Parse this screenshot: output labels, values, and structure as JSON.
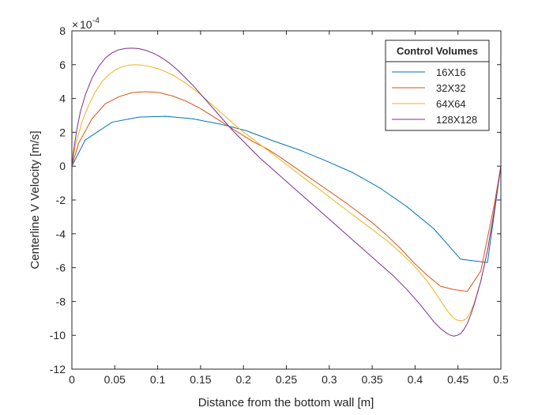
{
  "chart_data": {
    "type": "line",
    "title": "",
    "xlabel": "Distance from the bottom wall [m]",
    "ylabel": "Centerline V Velocity [m/s]",
    "xlim": [
      0,
      0.5
    ],
    "ylim": [
      -12,
      8
    ],
    "y_scale_base": "10",
    "y_scale_exponent": "-4",
    "x_ticks": [
      0,
      0.05,
      0.1,
      0.15,
      0.2,
      0.25,
      0.3,
      0.35,
      0.4,
      0.45,
      0.5
    ],
    "x_tick_labels": [
      "0",
      "0.05",
      "0.1",
      "0.15",
      "0.2",
      "0.25",
      "0.3",
      "0.35",
      "0.4",
      "0.45",
      "0.5"
    ],
    "y_ticks": [
      -12,
      -10,
      -8,
      -6,
      -4,
      -2,
      0,
      2,
      4,
      6,
      8
    ],
    "y_tick_labels": [
      "-12",
      "-10",
      "-8",
      "-6",
      "-4",
      "-2",
      "0",
      "2",
      "4",
      "6",
      "8"
    ],
    "grid": false,
    "legend": {
      "title": "Control Volumes",
      "position": "top-right"
    },
    "series": [
      {
        "name": "16X16",
        "color": "#0072BD",
        "x": [
          0,
          0.0156,
          0.0469,
          0.0781,
          0.1094,
          0.1406,
          0.1719,
          0.2031,
          0.2344,
          0.2656,
          0.2969,
          0.3281,
          0.3594,
          0.3906,
          0.4219,
          0.4531,
          0.4844,
          0.5
        ],
        "y": [
          0,
          1.55,
          2.6,
          2.9,
          2.95,
          2.8,
          2.5,
          2.1,
          1.5,
          0.95,
          0.3,
          -0.4,
          -1.3,
          -2.4,
          -3.7,
          -5.5,
          -5.7,
          0
        ]
      },
      {
        "name": "32X32",
        "color": "#D95319",
        "x": [
          0,
          0.0078,
          0.0234,
          0.0391,
          0.0547,
          0.0703,
          0.0859,
          0.1016,
          0.1172,
          0.1328,
          0.1484,
          0.1641,
          0.1797,
          0.1953,
          0.2109,
          0.2266,
          0.2422,
          0.2578,
          0.2734,
          0.2891,
          0.3047,
          0.3203,
          0.3359,
          0.3516,
          0.3672,
          0.3828,
          0.3984,
          0.4141,
          0.4297,
          0.4453,
          0.4609,
          0.4766,
          0.4922,
          0.5
        ],
        "y": [
          0,
          1.35,
          2.8,
          3.7,
          4.1,
          4.35,
          4.4,
          4.35,
          4.15,
          3.85,
          3.45,
          2.95,
          2.45,
          1.95,
          1.45,
          1.05,
          0.55,
          0.0,
          -0.55,
          -1.1,
          -1.65,
          -2.2,
          -2.8,
          -3.4,
          -4.1,
          -4.85,
          -5.7,
          -6.45,
          -7.1,
          -7.3,
          -7.4,
          -6.2,
          -2.3,
          0
        ]
      },
      {
        "name": "64X64",
        "color": "#EDB120",
        "x": [
          0,
          0.0039,
          0.0117,
          0.0195,
          0.0273,
          0.0352,
          0.043,
          0.0508,
          0.0586,
          0.0664,
          0.0742,
          0.082,
          0.0898,
          0.1016,
          0.1172,
          0.1328,
          0.1484,
          0.1641,
          0.1797,
          0.1953,
          0.2109,
          0.2266,
          0.2422,
          0.2578,
          0.2734,
          0.2891,
          0.3047,
          0.3203,
          0.3359,
          0.3516,
          0.3672,
          0.3828,
          0.3984,
          0.4141,
          0.4219,
          0.4297,
          0.4375,
          0.4453,
          0.4492,
          0.4531,
          0.457,
          0.4609,
          0.4648,
          0.4688,
          0.4766,
          0.4844,
          0.4922,
          0.5
        ],
        "y": [
          0,
          1.2,
          2.6,
          3.6,
          4.4,
          5.0,
          5.4,
          5.7,
          5.88,
          5.97,
          6.0,
          5.97,
          5.9,
          5.75,
          5.4,
          4.9,
          4.3,
          3.6,
          2.9,
          2.2,
          1.6,
          1.0,
          0.4,
          -0.2,
          -0.8,
          -1.4,
          -2.0,
          -2.6,
          -3.2,
          -3.8,
          -4.4,
          -5.1,
          -5.85,
          -6.8,
          -7.35,
          -7.95,
          -8.55,
          -9.0,
          -9.1,
          -9.15,
          -9.1,
          -8.95,
          -8.6,
          -8.1,
          -6.8,
          -5.0,
          -2.6,
          0
        ]
      },
      {
        "name": "128X128",
        "color": "#7E2F8E",
        "x": [
          0,
          0.002,
          0.0059,
          0.0098,
          0.0156,
          0.0234,
          0.0313,
          0.0391,
          0.0469,
          0.0547,
          0.0625,
          0.0703,
          0.0781,
          0.0859,
          0.0938,
          0.1016,
          0.1094,
          0.1172,
          0.125,
          0.1406,
          0.1563,
          0.1719,
          0.1875,
          0.2031,
          0.2188,
          0.2344,
          0.25,
          0.2656,
          0.2813,
          0.2969,
          0.3125,
          0.3281,
          0.3438,
          0.3594,
          0.375,
          0.3906,
          0.4063,
          0.4141,
          0.4219,
          0.4297,
          0.4375,
          0.4414,
          0.4453,
          0.4492,
          0.4531,
          0.457,
          0.4609,
          0.4648,
          0.4688,
          0.4766,
          0.4844,
          0.4922,
          0.5
        ],
        "y": [
          0,
          0.9,
          2.2,
          3.2,
          4.2,
          5.2,
          5.9,
          6.4,
          6.7,
          6.88,
          6.96,
          6.98,
          6.95,
          6.85,
          6.7,
          6.5,
          6.25,
          5.95,
          5.6,
          4.8,
          3.9,
          3.0,
          2.1,
          1.3,
          0.5,
          -0.2,
          -0.9,
          -1.6,
          -2.3,
          -3.0,
          -3.7,
          -4.4,
          -5.1,
          -5.8,
          -6.5,
          -7.3,
          -8.2,
          -8.7,
          -9.2,
          -9.6,
          -9.9,
          -10.0,
          -10.05,
          -10.0,
          -9.9,
          -9.65,
          -9.3,
          -8.8,
          -8.2,
          -6.8,
          -5.0,
          -2.7,
          0
        ]
      }
    ]
  }
}
